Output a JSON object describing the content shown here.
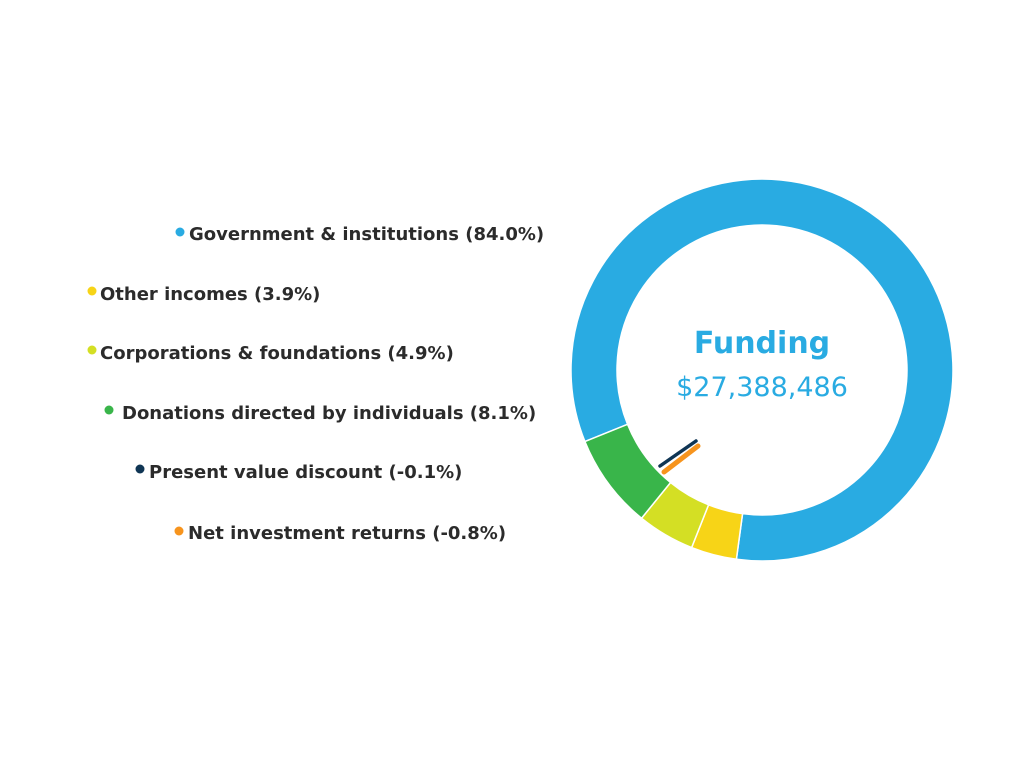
{
  "chart_data": {
    "type": "pie",
    "variant": "donut",
    "center_title": "Funding",
    "center_total": "$27,388,486",
    "legend_placement": "left",
    "series": [
      {
        "name": "Government & institutions",
        "label": "Government & institutions (84.0%)",
        "value": 84.0,
        "color": "#29abe2"
      },
      {
        "name": "Other incomes",
        "label": "Other incomes (3.9%)",
        "value": 3.9,
        "color": "#f7d417"
      },
      {
        "name": "Corporations & foundations",
        "label": "Corporations & foundations (4.9%)",
        "value": 4.9,
        "color": "#d4df24"
      },
      {
        "name": "Donations directed by individuals",
        "label": "Donations directed by individuals (8.1%)",
        "value": 8.1,
        "color": "#39b54a"
      },
      {
        "name": "Present value discount",
        "label": "Present value discount (-0.1%)",
        "value": -0.1,
        "color": "#0f3554"
      },
      {
        "name": "Net investment returns",
        "label": "Net investment returns (-0.8%)",
        "value": -0.8,
        "color": "#f7941d"
      }
    ],
    "accent_color": "#29abe2",
    "label_color": "#2b2b2b"
  }
}
